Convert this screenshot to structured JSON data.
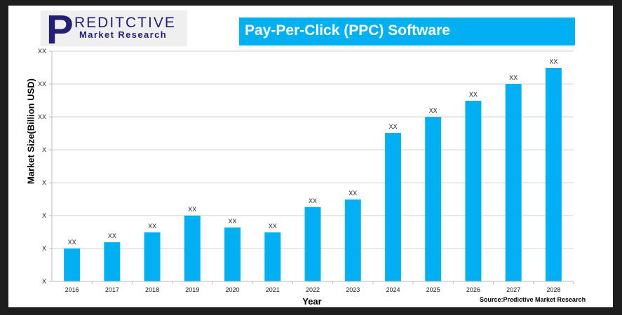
{
  "logo": {
    "letter": "P",
    "top": "REDITCTIVE",
    "bottom": "Market Research"
  },
  "chart_data": {
    "type": "bar",
    "title": "Pay-Per-Click (PPC) Software",
    "xlabel": "Year",
    "ylabel": "Market Size(Billion USD)",
    "source": "Source:Predictive Market Research",
    "categories": [
      "2016",
      "2017",
      "2018",
      "2019",
      "2020",
      "2021",
      "2022",
      "2023",
      "2024",
      "2025",
      "2026",
      "2027",
      "2028"
    ],
    "values": [
      1.0,
      1.19,
      1.49,
      2.0,
      1.64,
      1.49,
      2.26,
      2.49,
      4.51,
      5.0,
      5.49,
      6.0,
      6.49
    ],
    "data_labels": [
      "XX",
      "XX",
      "XX",
      "XX",
      "XX",
      "XX",
      "XX",
      "XX",
      "XX",
      "XX",
      "XX",
      "XX",
      "XX"
    ],
    "ytick_labels": [
      "X",
      "X",
      "X",
      "X",
      "X",
      "XX",
      "XX",
      "XX"
    ],
    "ylim": [
      0,
      7
    ],
    "grid": true,
    "bar_color": "#00b0f0",
    "title_bg": "#00b0f0"
  }
}
